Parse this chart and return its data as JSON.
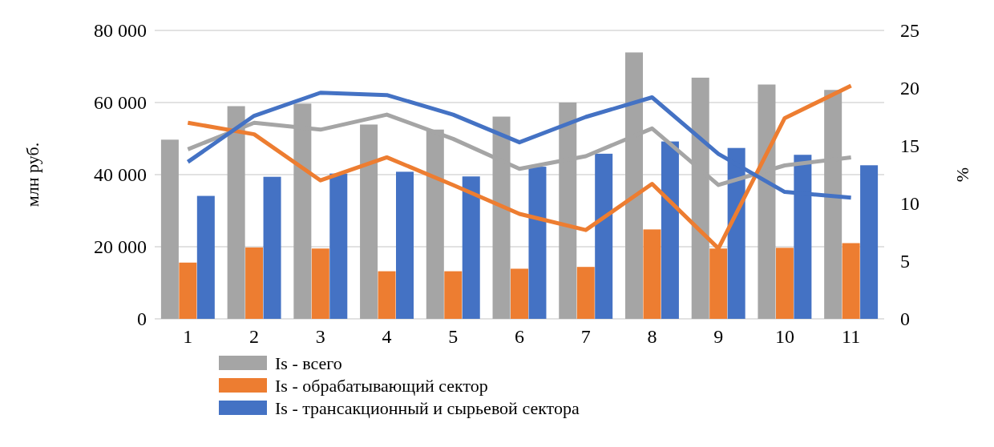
{
  "chart_data": {
    "type": "bar",
    "ylabel": "млн руб.",
    "y2label": "%",
    "categories": [
      "1",
      "2",
      "3",
      "4",
      "5",
      "6",
      "7",
      "8",
      "9",
      "10",
      "11"
    ],
    "series": [
      {
        "name": "Is - всего",
        "color": "#a5a5a5",
        "values": [
          49700,
          59000,
          59700,
          53900,
          52500,
          56100,
          60000,
          73900,
          66900,
          65000,
          63500
        ]
      },
      {
        "name": "Is - обрабатывающий сектор",
        "color": "#ed7d31",
        "values": [
          15600,
          19800,
          19500,
          13200,
          13200,
          13900,
          14400,
          24800,
          19500,
          19700,
          21000
        ]
      },
      {
        "name": "Is - трансакционный и сырьевой сектора",
        "color": "#4472c4",
        "values": [
          34100,
          39400,
          40300,
          40800,
          39500,
          42200,
          45800,
          49200,
          47400,
          45500,
          42600
        ]
      },
      {
        "type": "line",
        "axis": "y2",
        "color": "#a5a5a5",
        "values": [
          14.7,
          17.0,
          16.4,
          17.7,
          15.6,
          13.0,
          14.1,
          16.5,
          11.6,
          13.3,
          14.0
        ]
      },
      {
        "type": "line",
        "axis": "y2",
        "color": "#ed7d31",
        "values": [
          17.0,
          16.0,
          12.0,
          14.0,
          11.6,
          9.1,
          7.7,
          11.7,
          6.1,
          17.4,
          20.2
        ]
      },
      {
        "type": "line",
        "axis": "y2",
        "color": "#4472c4",
        "values": [
          13.6,
          17.6,
          19.6,
          19.4,
          17.7,
          15.3,
          17.5,
          19.2,
          14.3,
          11.0,
          10.5
        ]
      }
    ],
    "ylim": [
      0,
      80000
    ],
    "yticks": [
      {
        "value": 0,
        "label": "0"
      },
      {
        "value": 20000,
        "label": "20 000"
      },
      {
        "value": 40000,
        "label": "40 000"
      },
      {
        "value": 60000,
        "label": "60 000"
      },
      {
        "value": 80000,
        "label": "80 000"
      }
    ],
    "y2lim": [
      0,
      25
    ],
    "y2ticks": [
      0,
      5,
      10,
      15,
      20,
      25
    ],
    "grid": "y",
    "legend": "bottom"
  }
}
